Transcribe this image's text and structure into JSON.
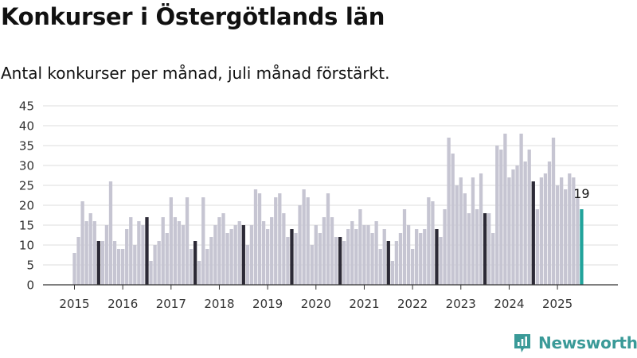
{
  "header": {
    "title": "Konkurser i Östergötlands län",
    "subtitle": "Antal konkurser per månad, juli månad förstärkt."
  },
  "brand": {
    "name": "Newsworthy",
    "icon": "bar-chart-logo-icon"
  },
  "colors": {
    "normal_bar": "#c6c5d2",
    "july_bar": "#2c2a36",
    "latest_bar": "#21a39b",
    "grid": "#dddddd",
    "brand": "#3a9a98"
  },
  "chart_data": {
    "type": "bar",
    "title": "Konkurser i Östergötlands län",
    "subtitle": "Antal konkurser per månad, juli månad förstärkt.",
    "xlabel": "",
    "ylabel": "",
    "ylim": [
      0,
      45
    ],
    "yticks": [
      0,
      5,
      10,
      15,
      20,
      25,
      30,
      35,
      40,
      45
    ],
    "grid": true,
    "start_month": "2015-01",
    "x_tick_labels": [
      "2015",
      "2016",
      "2017",
      "2018",
      "2019",
      "2020",
      "2021",
      "2022",
      "2023",
      "2024",
      "2025"
    ],
    "highlight": "July of each year is shown darker; the latest month is highlighted and labeled.",
    "latest_label": "19",
    "series": [
      {
        "values": [
          8,
          12,
          21,
          16,
          18,
          16,
          11,
          11,
          15,
          26,
          11,
          9,
          9,
          14,
          17,
          10,
          16,
          15,
          17,
          6,
          10,
          11,
          17,
          13,
          22,
          17,
          16,
          15,
          22,
          9,
          11,
          6,
          22,
          9,
          12,
          15,
          17,
          18,
          13,
          14,
          15,
          16,
          15,
          10,
          15,
          24,
          23,
          16,
          14,
          17,
          22,
          23,
          18,
          12,
          14,
          13,
          20,
          24,
          22,
          10,
          15,
          13,
          17,
          23,
          17,
          12,
          12,
          11,
          14,
          16,
          14,
          19,
          15,
          15,
          13,
          16,
          9,
          14,
          11,
          6,
          11,
          13,
          19,
          15,
          9,
          14,
          13,
          14,
          22,
          21,
          14,
          12,
          19,
          37,
          33,
          25,
          27,
          23,
          18,
          27,
          19,
          28,
          18,
          18,
          13,
          35,
          34,
          38,
          27,
          29,
          30,
          38,
          31,
          34,
          26,
          19,
          27,
          28,
          31,
          37,
          25,
          27,
          24,
          28,
          27,
          22,
          19
        ]
      }
    ]
  }
}
